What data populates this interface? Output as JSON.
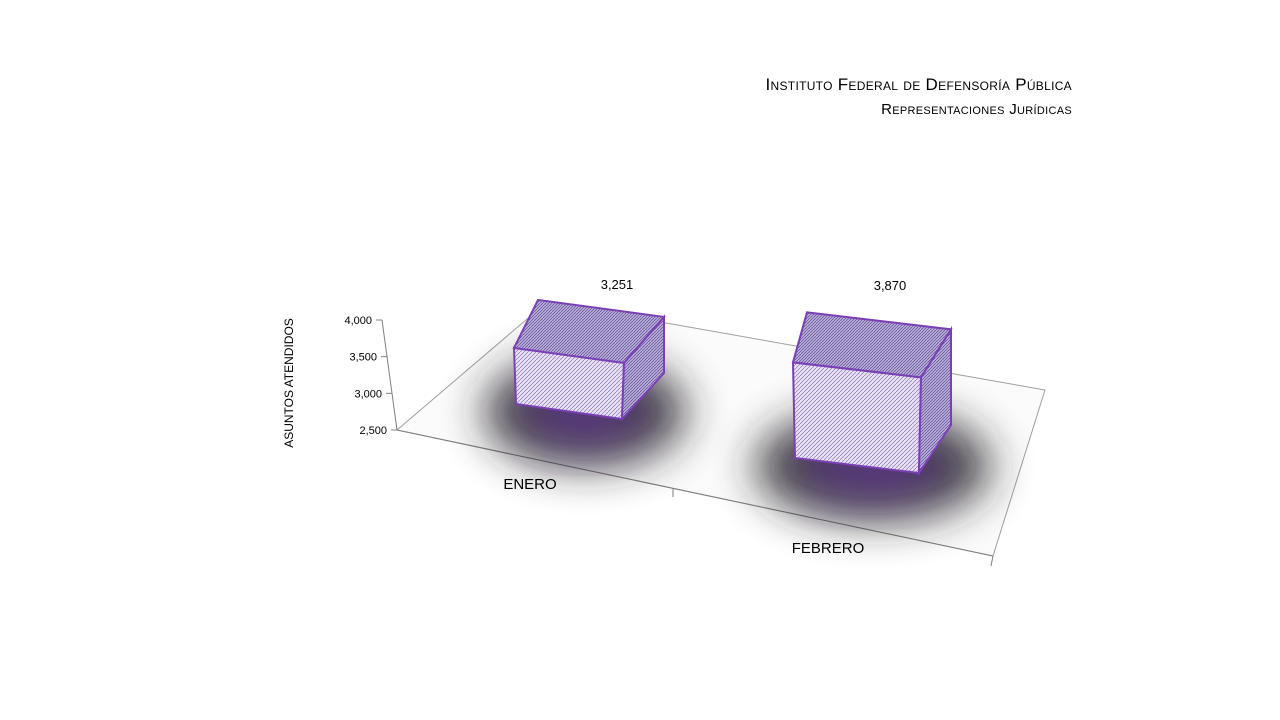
{
  "header": {
    "title": "Instituto Federal de Defensoría Pública",
    "subtitle": "Representaciones Jurídicas"
  },
  "chart_data": {
    "type": "bar",
    "title": "Instituto Federal de Defensoría Pública",
    "subtitle": "Representaciones Jurídicas",
    "categories": [
      "ENERO",
      "FEBRERO"
    ],
    "values": [
      3251,
      3870
    ],
    "data_labels": [
      "3,251",
      "3,870"
    ],
    "xlabel": "",
    "ylabel": "ASUNTOS ATENDIDOS",
    "ylim": [
      2500,
      4000
    ],
    "yticks": [
      "2,500",
      "3,000",
      "3,500",
      "4,000"
    ],
    "grid": false,
    "legend": "none",
    "style": "3d-box",
    "colors": {
      "bar_fill": "#d8d0ec",
      "bar_edge": "#7a3fb5",
      "shadow": "#2a2a2a",
      "floor": "#ffffff"
    }
  }
}
